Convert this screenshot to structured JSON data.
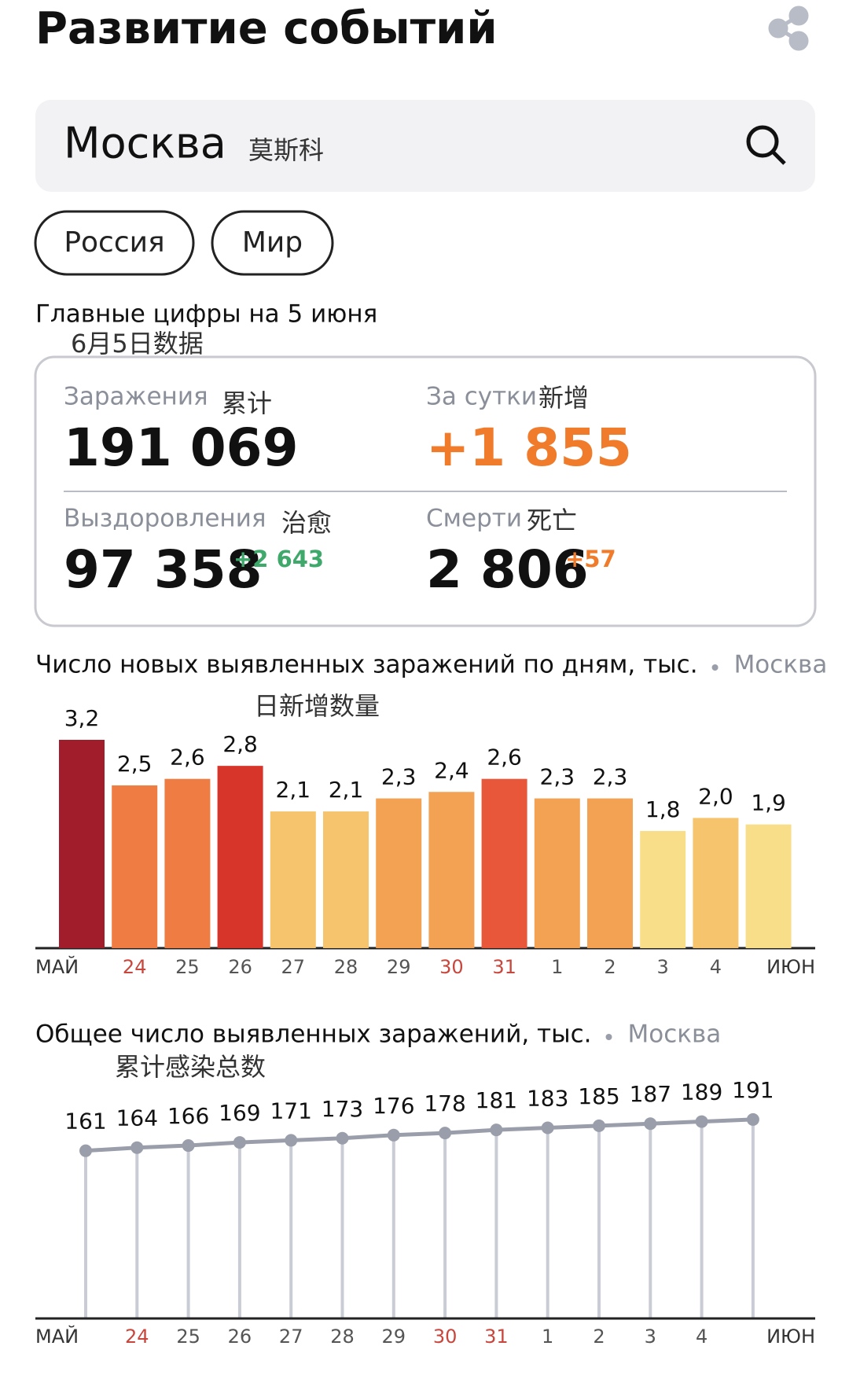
{
  "header": {
    "title": "Развитие событий"
  },
  "search": {
    "query": "Москва",
    "note": "莫斯科"
  },
  "tabs": [
    "Россия",
    "Мир"
  ],
  "summary": {
    "title": "Главные цифры на 5 июня",
    "note": "6月5日数据",
    "infections": {
      "label": "Заражения",
      "note": "累计",
      "value": "191 069"
    },
    "daily": {
      "label": "За сутки",
      "note": "新增",
      "value": "+1 855"
    },
    "recovered": {
      "label": "Выздоровления",
      "note": "治愈",
      "value": "97 358",
      "delta": "+2 643"
    },
    "deaths": {
      "label": "Смерти",
      "note": "死亡",
      "value": "2 806",
      "delta": "+57"
    }
  },
  "chart_data": [
    {
      "type": "bar",
      "title": "Число новых выявленных заражений по дням, тыс.",
      "region": "Москва",
      "annotation": "日新增数量",
      "categories": [
        null,
        "24",
        "25",
        "26",
        "27",
        "28",
        "29",
        "30",
        "31",
        "1",
        "2",
        "3",
        "4",
        null
      ],
      "label_colors": [
        "#555",
        "#c9463d",
        "#555",
        "#555",
        "#555",
        "#555",
        "#555",
        "#c9463d",
        "#c9463d",
        "#555",
        "#555",
        "#555",
        "#555",
        "#555"
      ],
      "month_labels": [
        "МАЙ",
        "ИЮН"
      ],
      "values": [
        3.2,
        2.5,
        2.6,
        2.8,
        2.1,
        2.1,
        2.3,
        2.4,
        2.6,
        2.3,
        2.3,
        1.8,
        2.0,
        1.9
      ],
      "value_labels": [
        "3,2",
        "2,5",
        "2,6",
        "2,8",
        "2,1",
        "2,1",
        "2,3",
        "2,4",
        "2,6",
        "2,3",
        "2,3",
        "1,8",
        "2,0",
        "1,9"
      ],
      "colors": [
        "#a11d2b",
        "#ef7c42",
        "#ef7c42",
        "#d8352a",
        "#f6c46c",
        "#f6c46c",
        "#f3a253",
        "#f3a253",
        "#e9573a",
        "#f3a253",
        "#f3a253",
        "#f9de8a",
        "#f6c46c",
        "#f9de8a"
      ],
      "ylim": [
        0,
        3.2
      ]
    },
    {
      "type": "line",
      "title": "Общее число выявленных заражений, тыс.",
      "region": "Москва",
      "annotation": "累计感染总数",
      "categories": [
        null,
        "24",
        "25",
        "26",
        "27",
        "28",
        "29",
        "30",
        "31",
        "1",
        "2",
        "3",
        "4",
        null
      ],
      "label_colors": [
        "#555",
        "#c9463d",
        "#555",
        "#555",
        "#555",
        "#555",
        "#555",
        "#c9463d",
        "#c9463d",
        "#555",
        "#555",
        "#555",
        "#555",
        "#555"
      ],
      "month_labels": [
        "МАЙ",
        "ИЮН"
      ],
      "values": [
        161,
        164,
        166,
        169,
        171,
        173,
        176,
        178,
        181,
        183,
        185,
        187,
        189,
        191
      ],
      "color": "#9a9eab",
      "stem_color": "#c9ccd4",
      "ylim": [
        0,
        200
      ]
    }
  ]
}
